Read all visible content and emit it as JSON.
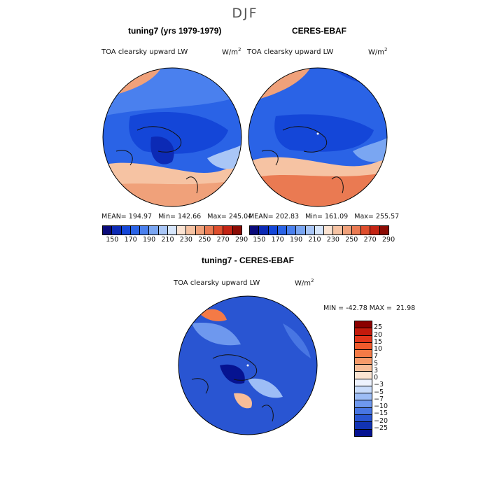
{
  "season": "DJF",
  "variable": "TOA clearsky upward LW",
  "units_base": "W/m",
  "units_exp": "2",
  "panels": [
    {
      "title": "tuning7 (yrs 1979-1979)",
      "stats": {
        "mean_label": "MEAN=",
        "mean": "194.97",
        "min_label": "Min=",
        "min": "142.66",
        "max_label": "Max=",
        "max": "245.04"
      }
    },
    {
      "title": "CERES-EBAF",
      "stats": {
        "mean_label": "MEAN=",
        "mean": "202.83",
        "min_label": "Min=",
        "min": "161.09",
        "max_label": "Max=",
        "max": "255.57"
      }
    }
  ],
  "abs_colorbar": {
    "tick_labels": [
      "150",
      "170",
      "190",
      "210",
      "230",
      "250",
      "270",
      "290"
    ],
    "colors": [
      "#0a0a7a",
      "#0c2ab5",
      "#1446d8",
      "#2a63e6",
      "#4a80ee",
      "#7aa6f2",
      "#a9c6f6",
      "#d7e6fb",
      "#fbe3d2",
      "#f6c3a3",
      "#f0a17a",
      "#ea7a52",
      "#df4e2d",
      "#c42414",
      "#8c0c05"
    ]
  },
  "diff_panel": {
    "title": "tuning7 - CERES-EBAF",
    "min_label": "MIN =",
    "min": "-42.78",
    "max_label": "MAX =",
    "max": "21.98"
  },
  "diff_colorbar": {
    "labels": [
      "25",
      "20",
      "15",
      "10",
      "7",
      "5",
      "3",
      "0",
      "−3",
      "−5",
      "−7",
      "−10",
      "−15",
      "−20",
      "−25"
    ],
    "colors": [
      "#8b0000",
      "#c41a0c",
      "#e2361b",
      "#ef5a2c",
      "#f47a46",
      "#f69a6a",
      "#f8bd98",
      "#fbe4d2",
      "#eef3fe",
      "#c9dcfb",
      "#9dbdf6",
      "#6e98ee",
      "#4876e3",
      "#2955d2",
      "#1233b4",
      "#061391"
    ]
  },
  "chart_data": {
    "type": "heatmap",
    "projection": "north polar stereographic",
    "maps": [
      {
        "title": "tuning7 (yrs 1979-1979)",
        "mean": 194.97,
        "min": 142.66,
        "max": 245.04,
        "levels": [
          150,
          160,
          170,
          180,
          190,
          200,
          210,
          220,
          230,
          240,
          250,
          260,
          270,
          280,
          290
        ]
      },
      {
        "title": "CERES-EBAF",
        "mean": 202.83,
        "min": 161.09,
        "max": 255.57,
        "levels": [
          150,
          160,
          170,
          180,
          190,
          200,
          210,
          220,
          230,
          240,
          250,
          260,
          270,
          280,
          290
        ]
      },
      {
        "title": "tuning7 - CERES-EBAF",
        "min": -42.78,
        "max": 21.98,
        "levels": [
          -25,
          -20,
          -15,
          -10,
          -7,
          -5,
          -3,
          0,
          3,
          5,
          7,
          10,
          15,
          20,
          25
        ]
      }
    ]
  }
}
